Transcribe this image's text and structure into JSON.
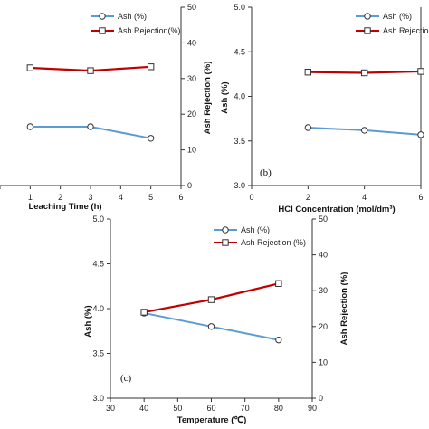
{
  "chart_data": [
    {
      "type": "line",
      "panel": "a",
      "panel_label": "",
      "xlabel": "Leaching Time (h)",
      "ylabel_left": "",
      "ylabel_right": "Ash Rejection (%)",
      "xlim": [
        0,
        6
      ],
      "x_ticks": [
        "0",
        "1",
        "2",
        "3",
        "4",
        "5",
        "6"
      ],
      "ylim_left": [
        3.0,
        5.0
      ],
      "y_ticks_left": [],
      "ylim_right": [
        0,
        50
      ],
      "y_ticks_right": [
        "0",
        "10",
        "20",
        "30",
        "40",
        "50"
      ],
      "x": [
        1,
        3,
        5
      ],
      "series": [
        {
          "name": "Ash (%)",
          "axis": "left",
          "marker": "circle",
          "color": "#5b9bd5",
          "values": [
            3.66,
            3.66,
            3.53
          ]
        },
        {
          "name": "Ash Rejection(%)",
          "axis": "right",
          "marker": "square",
          "color": "#c00000",
          "values": [
            33.0,
            32.2,
            33.3
          ]
        }
      ],
      "legend": "top-right"
    },
    {
      "type": "line",
      "panel": "b",
      "panel_label": "(b)",
      "xlabel": "HCl Concentration (mol/dm³)",
      "ylabel_left": "Ash (%)",
      "ylabel_right": "",
      "xlim": [
        0,
        6
      ],
      "x_ticks": [
        "0",
        "2",
        "4",
        "6"
      ],
      "ylim_left": [
        3.0,
        5.0
      ],
      "y_ticks_left": [
        "3.0",
        "3.5",
        "4.0",
        "4.5",
        "5.0"
      ],
      "ylim_right": [
        0,
        50
      ],
      "y_ticks_right": [],
      "x": [
        2,
        4,
        6
      ],
      "series": [
        {
          "name": "Ash (%)",
          "axis": "left",
          "marker": "circle",
          "color": "#5b9bd5",
          "values": [
            3.65,
            3.62,
            3.57
          ]
        },
        {
          "name": "Ash Rejection(%)",
          "axis": "right",
          "marker": "square",
          "color": "#c00000",
          "values": [
            31.8,
            31.6,
            32.0
          ]
        }
      ],
      "legend": "top-right"
    },
    {
      "type": "line",
      "panel": "c",
      "panel_label": "(c)",
      "xlabel": "Temperature  (℃)",
      "ylabel_left": "Ash (%)",
      "ylabel_right": "Ash Rejection (%)",
      "xlim": [
        30,
        90
      ],
      "x_ticks": [
        "30",
        "40",
        "50",
        "60",
        "70",
        "80",
        "90"
      ],
      "ylim_left": [
        3.0,
        5.0
      ],
      "y_ticks_left": [
        "3.0",
        "3.5",
        "4.0",
        "4.5",
        "5.0"
      ],
      "ylim_right": [
        0,
        50
      ],
      "y_ticks_right": [
        "0",
        "10",
        "20",
        "30",
        "40",
        "50"
      ],
      "x": [
        40,
        60,
        80
      ],
      "series": [
        {
          "name": "Ash (%)",
          "axis": "left",
          "marker": "circle",
          "color": "#5b9bd5",
          "values": [
            3.95,
            3.8,
            3.65
          ]
        },
        {
          "name": "Ash Rejection (%)",
          "axis": "right",
          "marker": "square",
          "color": "#c00000",
          "values": [
            24.0,
            27.5,
            32.0
          ]
        }
      ],
      "legend": "top-center"
    }
  ]
}
